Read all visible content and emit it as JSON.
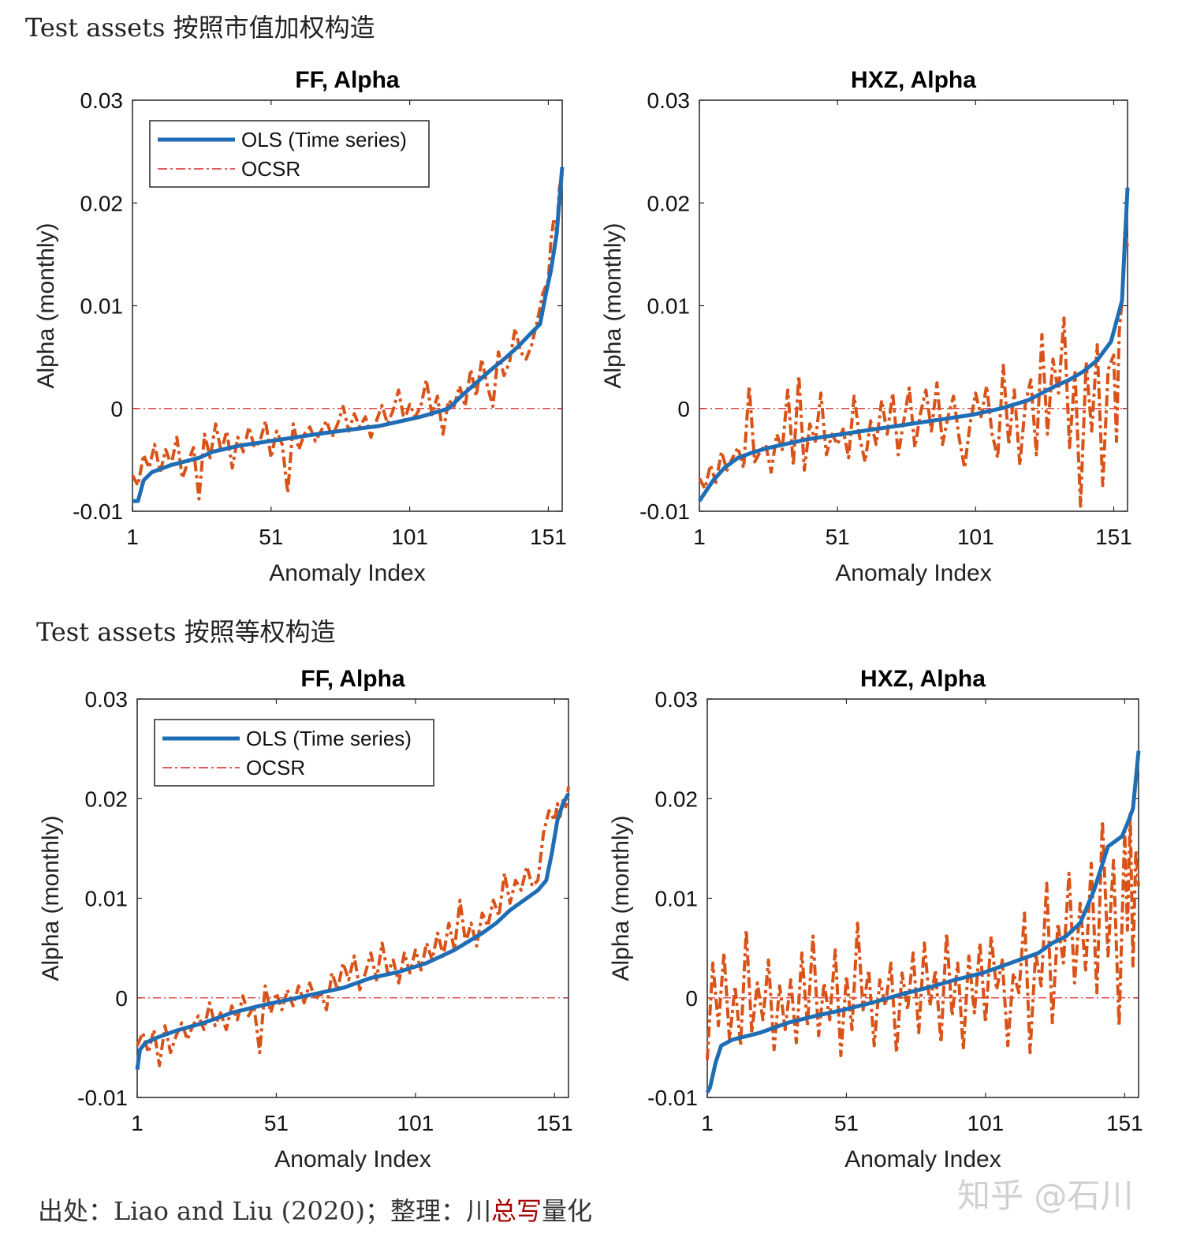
{
  "headings": {
    "top": "Test assets 按照市值加权构造",
    "bottom": "Test assets 按照等权构造"
  },
  "footer": {
    "prefix": "出处：Liao and Liu (2020)；整理：",
    "brand_1": "川",
    "brand_2": "总写",
    "brand_3": "量化"
  },
  "watermark": "知乎 @石川",
  "colors": {
    "ols": "#1f6db5",
    "ocsr": "#d95319",
    "zero_line": "#d62728"
  },
  "chart_data": [
    {
      "type": "line",
      "title": "FF, Alpha",
      "xlabel": "Anomaly Index",
      "ylabel": "Alpha (monthly)",
      "xlim": [
        1,
        156
      ],
      "ylim": [
        -0.01,
        0.03
      ],
      "xticks": [
        "1",
        "51",
        "101",
        "151"
      ],
      "yticks": [
        "0.03",
        "0.02",
        "0.01",
        "0",
        "-0.01"
      ],
      "legend": {
        "position": "top-left",
        "entries": [
          "OLS (Time series)",
          "OCSR"
        ]
      },
      "zero_line": 0,
      "series": [
        {
          "name": "OLS (Time series)",
          "x": [
            1,
            3,
            5,
            8,
            15,
            25,
            30,
            40,
            55,
            70,
            90,
            105,
            115,
            120,
            125,
            130,
            135,
            140,
            145,
            148,
            150,
            152,
            154,
            156
          ],
          "values": [
            -0.009,
            -0.009,
            -0.007,
            -0.0062,
            -0.0055,
            -0.0048,
            -0.0042,
            -0.0036,
            -0.003,
            -0.0024,
            -0.0017,
            -0.0008,
            0,
            0.0013,
            0.0025,
            0.0037,
            0.0048,
            0.006,
            0.0074,
            0.0082,
            0.011,
            0.0135,
            0.017,
            0.0235
          ]
        },
        {
          "name": "OCSR",
          "x": [
            1,
            3,
            5,
            7,
            9,
            11,
            13,
            15,
            17,
            19,
            21,
            23,
            25,
            27,
            29,
            31,
            33,
            35,
            37,
            39,
            41,
            43,
            45,
            47,
            49,
            51,
            53,
            55,
            57,
            59,
            61,
            63,
            65,
            67,
            69,
            71,
            73,
            75,
            77,
            79,
            81,
            83,
            85,
            87,
            89,
            91,
            93,
            95,
            97,
            99,
            101,
            103,
            105,
            107,
            109,
            111,
            113,
            115,
            117,
            119,
            121,
            123,
            125,
            127,
            129,
            131,
            133,
            135,
            137,
            139,
            141,
            143,
            145,
            147,
            149,
            151,
            152,
            153,
            154,
            155,
            156
          ],
          "values": [
            -0.0065,
            -0.0075,
            -0.0045,
            -0.0058,
            -0.0035,
            -0.0062,
            -0.004,
            -0.0055,
            -0.0028,
            -0.0068,
            -0.0052,
            -0.0038,
            -0.0088,
            -0.0025,
            -0.0048,
            -0.0015,
            -0.0042,
            -0.0022,
            -0.0058,
            -0.0028,
            -0.0042,
            -0.0018,
            -0.0038,
            -0.0032,
            -0.0012,
            -0.0048,
            -0.0022,
            -0.0035,
            -0.0082,
            -0.0015,
            -0.004,
            -0.0025,
            -0.0018,
            -0.0032,
            -0.0022,
            -0.0012,
            -0.0028,
            -0.0015,
            0.0002,
            -0.0022,
            -0.0005,
            -0.0018,
            -0.0008,
            -0.0028,
            -0.0012,
            0.0003,
            -0.0015,
            -0.0002,
            0.0018,
            -0.0012,
            0.0004,
            -0.0008,
            0.0002,
            0.0028,
            -0.0006,
            0.0012,
            -0.0025,
            0.0008,
            0.0002,
            0.0022,
            0.0002,
            0.0038,
            0.0012,
            0.0048,
            0.0022,
            0.0002,
            0.0055,
            0.0032,
            0.0045,
            0.0078,
            0.0055,
            0.0048,
            0.0062,
            0.0085,
            0.0112,
            0.0125,
            0.0165,
            0.0185,
            0.0172,
            0.0215,
            0.0228
          ]
        }
      ]
    },
    {
      "type": "line",
      "title": "HXZ, Alpha",
      "xlabel": "Anomaly Index",
      "ylabel": "Alpha (monthly)",
      "xlim": [
        1,
        156
      ],
      "ylim": [
        -0.01,
        0.03
      ],
      "xticks": [
        "1",
        "51",
        "101",
        "151"
      ],
      "yticks": [
        "0.03",
        "0.02",
        "0.01",
        "0",
        "-0.01"
      ],
      "legend": null,
      "zero_line": 0,
      "series": [
        {
          "name": "OLS (Time series)",
          "x": [
            1,
            3,
            6,
            10,
            15,
            20,
            25,
            30,
            40,
            50,
            60,
            70,
            80,
            90,
            100,
            110,
            120,
            125,
            130,
            135,
            140,
            145,
            150,
            152,
            154,
            156
          ],
          "values": [
            -0.009,
            -0.0082,
            -0.007,
            -0.0058,
            -0.0048,
            -0.0043,
            -0.0039,
            -0.0036,
            -0.003,
            -0.0026,
            -0.0022,
            -0.0018,
            -0.0014,
            -0.001,
            -0.0006,
            0,
            0.0008,
            0.0015,
            0.0022,
            0.0028,
            0.0036,
            0.0047,
            0.0065,
            0.0085,
            0.0105,
            0.0215
          ]
        },
        {
          "name": "OCSR",
          "x": [
            1,
            3,
            5,
            7,
            9,
            11,
            13,
            15,
            17,
            19,
            21,
            23,
            25,
            27,
            29,
            31,
            33,
            35,
            37,
            39,
            41,
            43,
            45,
            47,
            49,
            51,
            53,
            55,
            57,
            59,
            61,
            63,
            65,
            67,
            69,
            71,
            73,
            75,
            77,
            79,
            81,
            83,
            85,
            87,
            89,
            91,
            93,
            95,
            97,
            99,
            101,
            103,
            105,
            107,
            109,
            111,
            113,
            115,
            117,
            119,
            121,
            123,
            125,
            127,
            129,
            131,
            133,
            135,
            137,
            139,
            141,
            143,
            145,
            147,
            149,
            151,
            152,
            153,
            154,
            155,
            156
          ],
          "values": [
            -0.0068,
            -0.0078,
            -0.0055,
            -0.0072,
            -0.0042,
            -0.006,
            -0.0048,
            -0.0038,
            -0.0058,
            0.0022,
            -0.0052,
            -0.0042,
            -0.0035,
            -0.0062,
            -0.0025,
            -0.004,
            0.0018,
            -0.0055,
            0.0032,
            -0.006,
            -0.0015,
            -0.0032,
            0.0015,
            -0.0045,
            -0.0025,
            -0.0035,
            -0.002,
            -0.0048,
            0.0012,
            -0.0028,
            -0.0052,
            -0.0012,
            -0.0035,
            0.0008,
            -0.0025,
            0.0015,
            -0.0045,
            -0.0012,
            0.002,
            -0.0038,
            -0.0005,
            0.0018,
            -0.0022,
            0.0025,
            -0.0035,
            -0.0008,
            0.0012,
            -0.0028,
            -0.0058,
            -0.0015,
            0.0015,
            -0.0008,
            0.0022,
            -0.0025,
            -0.0048,
            0.0042,
            -0.0035,
            0.0018,
            -0.0055,
            0.0005,
            0.0028,
            -0.0045,
            0.0072,
            -0.0025,
            0.0048,
            0.0015,
            0.0088,
            -0.0038,
            0.0035,
            -0.0095,
            0.0045,
            -0.0022,
            0.0062,
            -0.0075,
            0.0038,
            0.0052,
            -0.0032,
            0.0075,
            0.0105,
            0.0172,
            0.0158
          ]
        }
      ]
    },
    {
      "type": "line",
      "title": "FF, Alpha",
      "xlabel": "Anomaly Index",
      "ylabel": "Alpha (monthly)",
      "xlim": [
        1,
        156
      ],
      "ylim": [
        -0.01,
        0.03
      ],
      "xticks": [
        "1",
        "51",
        "101",
        "151"
      ],
      "yticks": [
        "0.03",
        "0.02",
        "0.01",
        "0",
        "-0.01"
      ],
      "legend": {
        "position": "top-left",
        "entries": [
          "OLS (Time series)",
          "OCSR"
        ]
      },
      "zero_line": 0,
      "series": [
        {
          "name": "OLS (Time series)",
          "x": [
            1,
            2,
            4,
            8,
            15,
            25,
            35,
            45,
            55,
            65,
            75,
            85,
            95,
            105,
            115,
            125,
            130,
            135,
            140,
            145,
            148,
            150,
            152,
            154,
            156
          ],
          "values": [
            -0.0072,
            -0.0052,
            -0.0045,
            -0.004,
            -0.0033,
            -0.0025,
            -0.0015,
            -0.0008,
            -0.0002,
            0.0004,
            0.001,
            0.002,
            0.0026,
            0.0035,
            0.0048,
            0.0065,
            0.0075,
            0.0088,
            0.0098,
            0.0108,
            0.0118,
            0.0145,
            0.0178,
            0.0195,
            0.0205
          ]
        },
        {
          "name": "OCSR",
          "x": [
            1,
            3,
            5,
            7,
            9,
            11,
            13,
            15,
            17,
            19,
            21,
            23,
            25,
            27,
            29,
            31,
            33,
            35,
            37,
            39,
            41,
            43,
            45,
            47,
            49,
            51,
            53,
            55,
            57,
            59,
            61,
            63,
            65,
            67,
            69,
            71,
            73,
            75,
            77,
            79,
            81,
            83,
            85,
            87,
            89,
            91,
            93,
            95,
            97,
            99,
            101,
            103,
            105,
            107,
            109,
            111,
            113,
            115,
            117,
            119,
            121,
            123,
            125,
            127,
            129,
            131,
            133,
            135,
            137,
            139,
            141,
            143,
            145,
            147,
            149,
            151,
            152,
            153,
            154,
            155,
            156
          ],
          "values": [
            -0.0048,
            -0.0035,
            -0.0055,
            -0.0032,
            -0.0068,
            -0.0028,
            -0.0055,
            -0.0038,
            -0.0025,
            -0.0042,
            -0.0028,
            -0.0018,
            -0.0032,
            -0.0005,
            -0.0028,
            -0.0015,
            -0.0032,
            -0.0008,
            -0.0022,
            0.0002,
            -0.0018,
            -0.0008,
            -0.0055,
            0.0012,
            -0.0015,
            0.0005,
            -0.0012,
            0.0008,
            -0.0008,
            0.0012,
            -0.0005,
            0.0015,
            -0.0002,
            0.0005,
            -0.0012,
            0.0025,
            0.0008,
            0.0035,
            0.0018,
            0.0042,
            0.0008,
            0.0025,
            0.0045,
            0.0018,
            0.0055,
            0.0025,
            0.0038,
            0.0015,
            0.0045,
            0.0025,
            0.0048,
            0.0028,
            0.0055,
            0.0038,
            0.0065,
            0.0042,
            0.0075,
            0.0048,
            0.0098,
            0.0055,
            0.0075,
            0.0052,
            0.0085,
            0.0072,
            0.0098,
            0.0082,
            0.0125,
            0.0095,
            0.0118,
            0.0108,
            0.0132,
            0.0112,
            0.0118,
            0.0165,
            0.0188,
            0.0178,
            0.0195,
            0.0182,
            0.0198,
            0.0192,
            0.0212
          ]
        }
      ]
    },
    {
      "type": "line",
      "title": "HXZ, Alpha",
      "xlabel": "Anomaly Index",
      "ylabel": "Alpha (monthly)",
      "xlim": [
        1,
        156
      ],
      "ylim": [
        -0.01,
        0.03
      ],
      "xticks": [
        "1",
        "51",
        "101",
        "151"
      ],
      "yticks": [
        "0.03",
        "0.02",
        "0.01",
        "0",
        "-0.01"
      ],
      "legend": null,
      "zero_line": 0,
      "series": [
        {
          "name": "OLS (Time series)",
          "x": [
            1,
            2,
            4,
            6,
            10,
            20,
            30,
            40,
            50,
            60,
            70,
            80,
            90,
            100,
            110,
            120,
            125,
            130,
            135,
            140,
            145,
            150,
            152,
            154,
            156
          ],
          "values": [
            -0.0095,
            -0.009,
            -0.0065,
            -0.0048,
            -0.0042,
            -0.0035,
            -0.0025,
            -0.0018,
            -0.0012,
            -0.0005,
            0.0003,
            0.001,
            0.0018,
            0.0025,
            0.0035,
            0.0045,
            0.0055,
            0.0062,
            0.0075,
            0.0108,
            0.0152,
            0.0162,
            0.0175,
            0.019,
            0.0248
          ]
        },
        {
          "name": "OCSR",
          "x": [
            1,
            3,
            5,
            7,
            9,
            11,
            13,
            15,
            17,
            19,
            21,
            23,
            25,
            27,
            29,
            31,
            33,
            35,
            37,
            39,
            41,
            43,
            45,
            47,
            49,
            51,
            53,
            55,
            57,
            59,
            61,
            63,
            65,
            67,
            69,
            71,
            73,
            75,
            77,
            79,
            81,
            83,
            85,
            87,
            89,
            91,
            93,
            95,
            97,
            99,
            101,
            103,
            105,
            107,
            109,
            111,
            113,
            115,
            117,
            119,
            121,
            123,
            125,
            127,
            129,
            131,
            133,
            135,
            137,
            139,
            141,
            143,
            145,
            147,
            149,
            151,
            152,
            153,
            154,
            155,
            156
          ],
          "values": [
            -0.0062,
            0.0035,
            -0.0028,
            0.0045,
            -0.0042,
            0.0012,
            -0.0048,
            0.0068,
            -0.0035,
            0.0015,
            -0.0022,
            0.0038,
            -0.0052,
            0.0012,
            -0.0032,
            0.0018,
            -0.0045,
            0.0045,
            -0.0028,
            0.0062,
            -0.0038,
            0.0015,
            -0.0022,
            0.0048,
            -0.0058,
            0.0022,
            -0.0032,
            0.0075,
            -0.0012,
            0.0028,
            -0.0048,
            0.0018,
            -0.0008,
            0.0035,
            -0.0055,
            0.0025,
            -0.0012,
            0.0045,
            -0.0035,
            0.0055,
            -0.0008,
            0.0028,
            -0.0045,
            0.0065,
            -0.0018,
            0.0035,
            -0.0052,
            0.0042,
            -0.0015,
            0.0055,
            -0.0025,
            0.0062,
            0.0008,
            0.0038,
            -0.0048,
            0.0025,
            0.0005,
            0.0085,
            -0.0055,
            0.0045,
            0.0012,
            0.0115,
            -0.0025,
            0.0075,
            0.0035,
            0.0125,
            0.0015,
            0.0095,
            0.0028,
            0.0135,
            0.0005,
            0.0178,
            0.0042,
            0.0138,
            -0.0028,
            0.0168,
            0.0068,
            0.0185,
            0.0032,
            0.0148,
            0.0112
          ]
        }
      ]
    }
  ]
}
